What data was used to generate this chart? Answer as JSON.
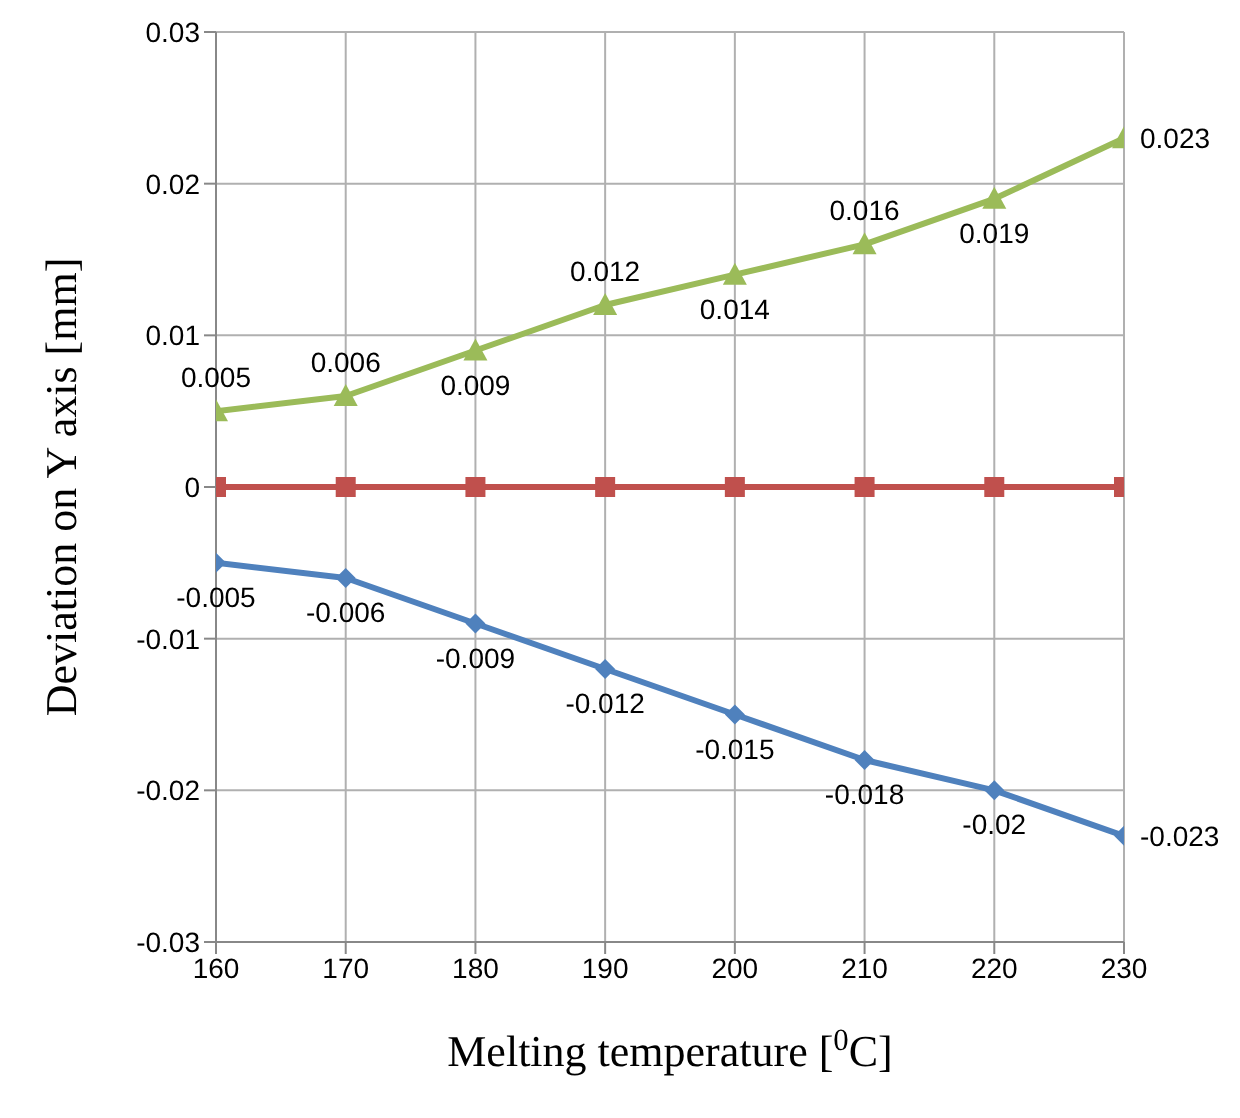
{
  "chart_data": {
    "type": "line",
    "xlabel": "Melting temperature [$^{0}$C]",
    "ylabel": "Deviation on Y axis [mm]",
    "x": [
      160,
      170,
      180,
      190,
      200,
      210,
      220,
      230
    ],
    "series": [
      {
        "color": "#9bbb59",
        "marker": "triangle",
        "values": [
          0.005,
          0.006,
          0.009,
          0.012,
          0.014,
          0.016,
          0.019,
          0.023
        ],
        "value_labels": [
          "0.005",
          "0.006",
          "0.009",
          "0.012",
          "0.014",
          "0.016",
          "0.019",
          "0.023"
        ]
      },
      {
        "color": "#c0504d",
        "marker": "square",
        "values": [
          0,
          0,
          0,
          0,
          0,
          0,
          0,
          0
        ]
      },
      {
        "color": "#4f81bd",
        "marker": "diamond",
        "values": [
          -0.005,
          -0.006,
          -0.009,
          -0.012,
          -0.015,
          -0.018,
          -0.02,
          -0.023
        ],
        "value_labels": [
          "-0.005",
          "-0.006",
          "-0.009",
          "-0.012",
          "-0.015",
          "-0.018",
          "-0.02",
          "-0.023"
        ]
      }
    ],
    "xlim": [
      160,
      230
    ],
    "xticks": [
      160,
      170,
      180,
      190,
      200,
      210,
      220,
      230
    ],
    "ylim": [
      -0.03,
      0.03
    ],
    "yticks": [
      -0.03,
      -0.02,
      -0.01,
      0,
      0.01,
      0.02,
      0.03
    ],
    "grid": true,
    "legend": false,
    "line_style": "solid"
  }
}
